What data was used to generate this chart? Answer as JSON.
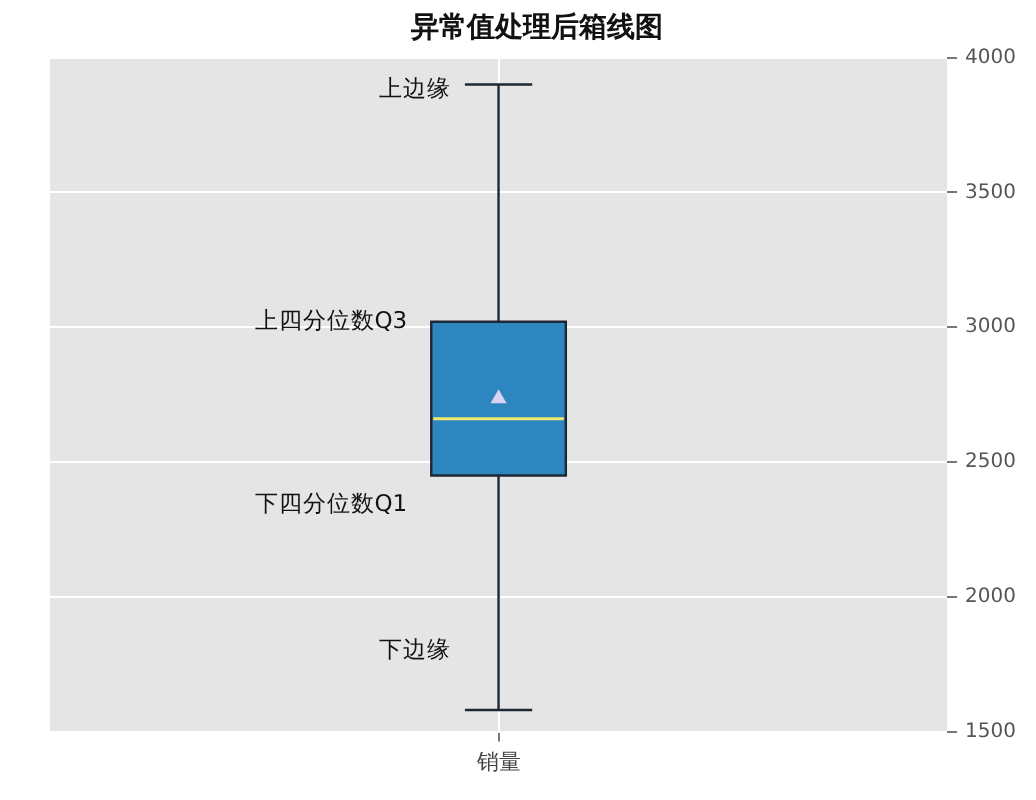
{
  "chart_data": {
    "type": "box",
    "title": "异常值处理后箱线图",
    "categories": [
      "销量"
    ],
    "series": [
      {
        "color": "#2e86c1",
        "boxes": [
          {
            "low": 1580,
            "q1": 2450,
            "median": 2660,
            "q3": 3020,
            "high": 3900,
            "mean": 2740
          }
        ]
      }
    ],
    "ylim": [
      1500,
      4000
    ],
    "yticks": [
      1500,
      2000,
      2500,
      3000,
      3500,
      4000
    ],
    "grid": true,
    "legend": false,
    "annotations": [
      {
        "text": "上边缘",
        "x": "销量",
        "y": 3880
      },
      "上四分位数Q3",
      "下四分位数Q1",
      {
        "text": "下边缘",
        "x": "销量",
        "y": 1800
      }
    ]
  }
}
